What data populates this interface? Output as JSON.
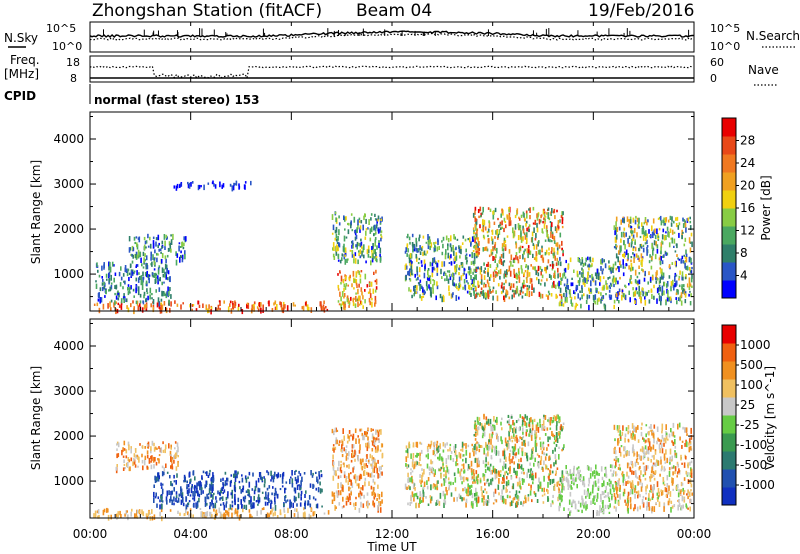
{
  "header": {
    "station": "Zhongshan Station (fitACF)",
    "beam": "Beam 04",
    "date": "19/Feb/2016"
  },
  "top_panels": {
    "nsky_label": "N.Sky",
    "nsky_ticks": [
      "10^5",
      "10^0"
    ],
    "nsearch_label": "N.Search",
    "nsearch_ticks": [
      "10^5",
      "10^0"
    ],
    "freq_label_1": "Freq.",
    "freq_label_2": "[MHz]",
    "freq_ticks": [
      "18",
      "8"
    ],
    "nave_label": "Nave",
    "nave_ticks": [
      "60",
      "0"
    ],
    "cpid_label": "CPID",
    "cpid_text": "normal (fast stereo) 153"
  },
  "time_axis": {
    "label": "Time UT",
    "ticks": [
      "00:00",
      "04:00",
      "08:00",
      "12:00",
      "16:00",
      "20:00",
      "00:00"
    ]
  },
  "chart_data": [
    {
      "type": "heatmap",
      "panel": "power",
      "ylabel": "Slant Range [km]",
      "yticks": [
        1000,
        2000,
        3000,
        4000
      ],
      "ylim": [
        180,
        4600
      ],
      "xlim_hours": [
        0,
        24
      ],
      "colorbar": {
        "label": "Power [dB]",
        "ticks": [
          "28",
          "24",
          "20",
          "16",
          "12",
          "8",
          "4"
        ],
        "colors": [
          "#0000ff",
          "#2a56c6",
          "#2f7f6a",
          "#4aa860",
          "#88cc44",
          "#f0d010",
          "#f0a020",
          "#f07820",
          "#e84818",
          "#e80000"
        ]
      },
      "echo_regions": [
        {
          "t0": 0.1,
          "t1": 9.5,
          "r0": 220,
          "r1": 420,
          "v": [
            0.55,
            1.0
          ]
        },
        {
          "t0": 0.2,
          "t1": 3.2,
          "r0": 380,
          "r1": 1300,
          "v": [
            0.05,
            0.4
          ]
        },
        {
          "t0": 1.5,
          "t1": 3.8,
          "r0": 1300,
          "r1": 1900,
          "v": [
            0.05,
            0.5
          ]
        },
        {
          "t0": 3.0,
          "t1": 6.5,
          "r0": 2950,
          "r1": 3080,
          "v": [
            0.0,
            0.2
          ]
        },
        {
          "t0": 9.6,
          "t1": 11.6,
          "r0": 1300,
          "r1": 2400,
          "v": [
            0.05,
            0.55
          ]
        },
        {
          "t0": 9.8,
          "t1": 11.4,
          "r0": 300,
          "r1": 1100,
          "v": [
            0.4,
            0.95
          ]
        },
        {
          "t0": 12.5,
          "t1": 15.4,
          "r0": 500,
          "r1": 1900,
          "v": [
            0.05,
            0.6
          ]
        },
        {
          "t0": 15.2,
          "t1": 18.8,
          "r0": 500,
          "r1": 2500,
          "v": [
            0.2,
            0.95
          ]
        },
        {
          "t0": 18.6,
          "t1": 20.8,
          "r0": 300,
          "r1": 1400,
          "v": [
            0.05,
            0.6
          ]
        },
        {
          "t0": 20.8,
          "t1": 23.9,
          "r0": 400,
          "r1": 2300,
          "v": [
            0.05,
            0.7
          ]
        }
      ]
    },
    {
      "type": "heatmap",
      "panel": "velocity",
      "ylabel": "Slant Range [km]",
      "yticks": [
        1000,
        2000,
        3000,
        4000
      ],
      "ylim": [
        180,
        4600
      ],
      "xlim_hours": [
        0,
        24
      ],
      "colorbar": {
        "label": "Velocity [m s^-1]",
        "ticks": [
          "1000",
          "500",
          "100",
          "25",
          "-25",
          "-100",
          "-500",
          "-1000"
        ],
        "colors": [
          "#1030c0",
          "#2050b0",
          "#2c7a70",
          "#3a9a50",
          "#66cc44",
          "#c8c8c8",
          "#f0c060",
          "#f09020",
          "#f06010",
          "#e80000"
        ]
      },
      "echo_regions": [
        {
          "t0": 0.1,
          "t1": 9.5,
          "r0": 220,
          "r1": 420,
          "v": [
            0.55,
            0.8
          ]
        },
        {
          "t0": 2.5,
          "t1": 9.2,
          "r0": 450,
          "r1": 1250,
          "v": [
            0.0,
            0.25
          ]
        },
        {
          "t0": 1.0,
          "t1": 3.5,
          "r0": 1300,
          "r1": 1900,
          "v": [
            0.5,
            0.9
          ]
        },
        {
          "t0": 9.6,
          "t1": 11.6,
          "r0": 400,
          "r1": 2200,
          "v": [
            0.5,
            0.9
          ]
        },
        {
          "t0": 12.5,
          "t1": 15.4,
          "r0": 500,
          "r1": 1900,
          "v": [
            0.35,
            0.8
          ]
        },
        {
          "t0": 15.2,
          "t1": 18.8,
          "r0": 500,
          "r1": 2500,
          "v": [
            0.3,
            0.85
          ]
        },
        {
          "t0": 18.6,
          "t1": 20.8,
          "r0": 300,
          "r1": 1400,
          "v": [
            0.4,
            0.6
          ]
        },
        {
          "t0": 20.8,
          "t1": 23.9,
          "r0": 400,
          "r1": 2300,
          "v": [
            0.45,
            0.85
          ]
        }
      ]
    }
  ]
}
